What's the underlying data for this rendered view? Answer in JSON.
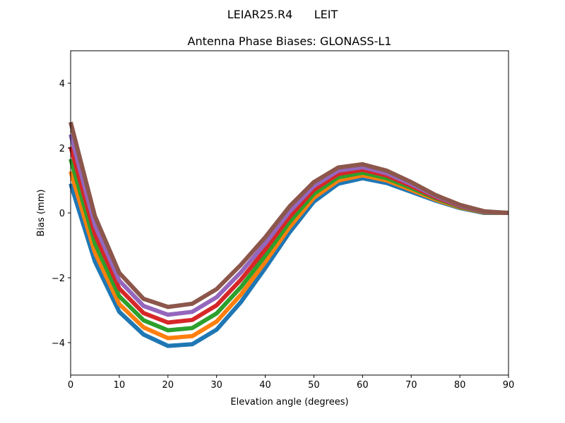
{
  "chart_data": {
    "type": "line",
    "suptitle": "LEIAR25.R4      LEIT",
    "title": "Antenna Phase Biases: GLONASS-L1",
    "xlabel": "Elevation angle (degrees)",
    "ylabel": "Bias (mm)",
    "xlim": [
      0,
      90
    ],
    "ylim": [
      -5,
      5
    ],
    "xticks": [
      "0",
      "10",
      "20",
      "30",
      "40",
      "50",
      "60",
      "70",
      "80",
      "90"
    ],
    "yticks": [
      "−4",
      "−2",
      "0",
      "2",
      "4"
    ],
    "grid": false,
    "x": [
      0,
      5,
      10,
      15,
      20,
      25,
      30,
      35,
      40,
      45,
      50,
      55,
      60,
      65,
      70,
      75,
      80,
      85,
      90
    ],
    "colors": [
      "#1f77b4",
      "#ff7f0e",
      "#2ca02c",
      "#d62728",
      "#9467bd",
      "#8c564b",
      "#e377c2",
      "#7f7f7f",
      "#bcbd22",
      "#17becf"
    ],
    "series": [
      {
        "values": [
          0.9,
          -1.5,
          -3.05,
          -3.75,
          -4.1,
          -4.05,
          -3.6,
          -2.75,
          -1.7,
          -0.6,
          0.35,
          0.9,
          1.07,
          0.92,
          0.65,
          0.38,
          0.15,
          0,
          0
        ]
      },
      {
        "values": [
          1.28,
          -1.22,
          -2.81,
          -3.53,
          -3.86,
          -3.8,
          -3.35,
          -2.52,
          -1.51,
          -0.44,
          0.47,
          1.0,
          1.16,
          1.0,
          0.71,
          0.41,
          0.17,
          0.01,
          0
        ]
      },
      {
        "values": [
          1.66,
          -0.94,
          -2.57,
          -3.31,
          -3.62,
          -3.55,
          -3.1,
          -2.29,
          -1.32,
          -0.28,
          0.59,
          1.1,
          1.24,
          1.07,
          0.77,
          0.45,
          0.19,
          0.02,
          0
        ]
      },
      {
        "values": [
          2.04,
          -0.66,
          -2.33,
          -3.09,
          -3.38,
          -3.3,
          -2.85,
          -2.06,
          -1.13,
          -0.12,
          0.71,
          1.2,
          1.33,
          1.15,
          0.83,
          0.48,
          0.21,
          0.03,
          0
        ]
      },
      {
        "values": [
          2.42,
          -0.38,
          -2.09,
          -2.87,
          -3.14,
          -3.05,
          -2.6,
          -1.83,
          -0.94,
          0.04,
          0.83,
          1.3,
          1.41,
          1.22,
          0.89,
          0.52,
          0.23,
          0.04,
          0
        ]
      },
      {
        "values": [
          2.8,
          -0.1,
          -1.85,
          -2.65,
          -2.9,
          -2.8,
          -2.35,
          -1.6,
          -0.75,
          0.2,
          0.95,
          1.4,
          1.5,
          1.3,
          0.95,
          0.55,
          0.25,
          0.05,
          0
        ]
      }
    ]
  }
}
